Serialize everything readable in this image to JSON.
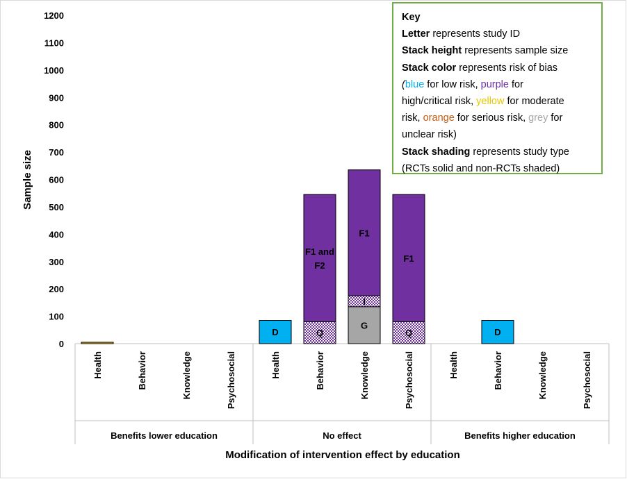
{
  "chart_data": {
    "type": "bar",
    "stacked": true,
    "ylabel": "Sample size",
    "xlabel": "Modification of intervention effect by education",
    "ylim": [
      0,
      1200
    ],
    "yticks": [
      "0",
      "100",
      "200",
      "300",
      "400",
      "500",
      "600",
      "700",
      "800",
      "900",
      "1000",
      "1100",
      "1200"
    ],
    "groups": [
      {
        "label": "Benefits lower education",
        "categories": [
          "Health",
          "Behavior",
          "Knowledge",
          "Psychosocial"
        ]
      },
      {
        "label": "No effect",
        "categories": [
          "Health",
          "Behavior",
          "Knowledge",
          "Psychosocial"
        ]
      },
      {
        "label": "Benefits higher education",
        "categories": [
          "Health",
          "Behavior",
          "Knowledge",
          "Psychosocial"
        ]
      }
    ],
    "stacks": [
      {
        "category_index": 0,
        "segments": [
          {
            "label": "",
            "value": 5,
            "risk": "moderate",
            "color": "#ffc000",
            "shaded": false
          }
        ]
      },
      {
        "category_index": 4,
        "segments": [
          {
            "label": "D",
            "value": 85,
            "risk": "low",
            "color": "#00b0f0",
            "shaded": false
          }
        ]
      },
      {
        "category_index": 5,
        "segments": [
          {
            "label": "Q",
            "value": 80,
            "risk": "high/critical",
            "color": "#7030a0",
            "shaded": true
          },
          {
            "label": "F1 and F2",
            "value": 465,
            "risk": "high/critical",
            "color": "#7030a0",
            "shaded": false
          }
        ]
      },
      {
        "category_index": 6,
        "segments": [
          {
            "label": "G",
            "value": 135,
            "risk": "unclear",
            "color": "#a6a6a6",
            "shaded": false
          },
          {
            "label": "I",
            "value": 40,
            "risk": "high/critical",
            "color": "#7030a0",
            "shaded": true
          },
          {
            "label": "F1",
            "value": 460,
            "risk": "high/critical",
            "color": "#7030a0",
            "shaded": false
          }
        ]
      },
      {
        "category_index": 7,
        "segments": [
          {
            "label": "Q",
            "value": 80,
            "risk": "high/critical",
            "color": "#7030a0",
            "shaded": true
          },
          {
            "label": "F1",
            "value": 465,
            "risk": "high/critical",
            "color": "#7030a0",
            "shaded": false
          }
        ]
      },
      {
        "category_index": 9,
        "segments": [
          {
            "label": "D",
            "value": 85,
            "risk": "low",
            "color": "#00b0f0",
            "shaded": false
          }
        ]
      }
    ],
    "legend_position": "top-right"
  },
  "key": {
    "title": "Key",
    "line1_b": "Letter",
    "line1_t": " represents study ID",
    "line2_b": "Stack height",
    "line2_t": " represents sample size",
    "line3_b": "Stack color",
    "line3_t": " represents risk of bias",
    "l4a": "(",
    "l4_blue": "blue",
    "l4b": " for low risk, ",
    "l4_purple": "purple",
    "l4c": " for",
    "l5a": "high/critical risk, ",
    "l5_yellow": "yellow",
    "l5b": " for moderate",
    "l6a": "risk, ",
    "l6_orange": "orange",
    "l6b": " for serious risk, ",
    "l6_grey": "grey",
    "l6c": " for",
    "l7": "unclear risk)",
    "line8_b": "Stack shading",
    "line8_t": " represents study type",
    "line9": "(RCTs solid and non-RCTs shaded)"
  }
}
